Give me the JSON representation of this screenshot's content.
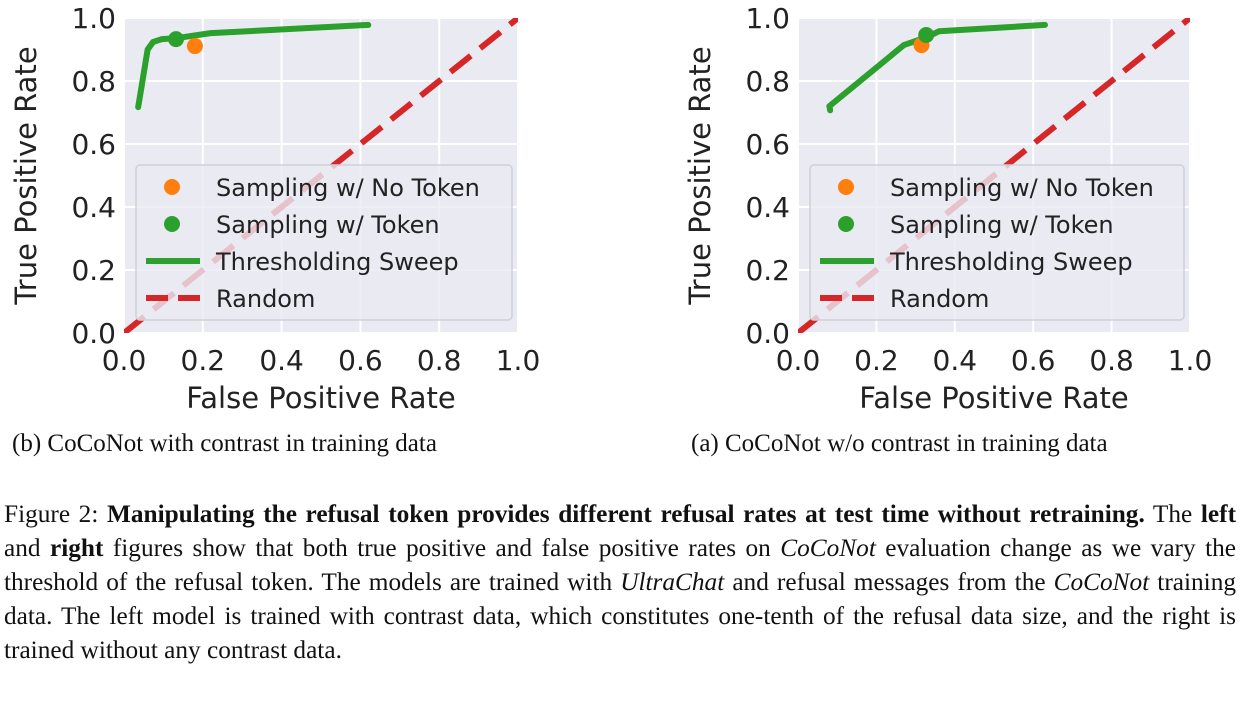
{
  "chart_data": [
    {
      "type": "line",
      "subcaption": "(b) CoCoNot with contrast in training data",
      "xlabel": "False Positive Rate",
      "ylabel": "True Positive Rate",
      "xlim": [
        0,
        1
      ],
      "ylim": [
        0,
        1
      ],
      "xticks": [
        "0.0",
        "0.2",
        "0.4",
        "0.6",
        "0.8",
        "1.0"
      ],
      "yticks": [
        "0.0",
        "0.2",
        "0.4",
        "0.6",
        "0.8",
        "1.0"
      ],
      "grid": true,
      "legend_placement": "lower-right",
      "series": [
        {
          "name": "Sampling w/ No Token",
          "kind": "point",
          "color": "#ff7f0e",
          "points": [
            [
              0.18,
              0.911
            ]
          ]
        },
        {
          "name": "Sampling w/ Token",
          "kind": "point",
          "color": "#2ca02c",
          "points": [
            [
              0.132,
              0.933
            ]
          ]
        },
        {
          "name": "Thresholding Sweep",
          "kind": "line",
          "color": "#2ca02c",
          "points": [
            [
              0.036,
              0.717
            ],
            [
              0.06,
              0.9
            ],
            [
              0.074,
              0.924
            ],
            [
              0.096,
              0.933
            ],
            [
              0.132,
              0.936
            ],
            [
              0.22,
              0.952
            ],
            [
              0.62,
              0.978
            ]
          ]
        },
        {
          "name": "Random",
          "kind": "dashed",
          "color": "#d62728",
          "points": [
            [
              0,
              0
            ],
            [
              1,
              1
            ]
          ]
        }
      ]
    },
    {
      "type": "line",
      "subcaption": "(a) CoCoNot w/o contrast in training data",
      "xlabel": "False Positive Rate",
      "ylabel": "True Positive Rate",
      "xlim": [
        0,
        1
      ],
      "ylim": [
        0,
        1
      ],
      "xticks": [
        "0.0",
        "0.2",
        "0.4",
        "0.6",
        "0.8",
        "1.0"
      ],
      "yticks": [
        "0.0",
        "0.2",
        "0.4",
        "0.6",
        "0.8",
        "1.0"
      ],
      "grid": true,
      "legend_placement": "lower-right",
      "series": [
        {
          "name": "Sampling w/ No Token",
          "kind": "point",
          "color": "#ff7f0e",
          "points": [
            [
              0.315,
              0.914
            ]
          ]
        },
        {
          "name": "Sampling w/ Token",
          "kind": "point",
          "color": "#2ca02c",
          "points": [
            [
              0.327,
              0.946
            ]
          ]
        },
        {
          "name": "Thresholding Sweep",
          "kind": "line",
          "color": "#2ca02c",
          "points": [
            [
              0.082,
              0.707
            ],
            [
              0.08,
              0.72
            ],
            [
              0.27,
              0.914
            ],
            [
              0.33,
              0.94
            ],
            [
              0.36,
              0.958
            ],
            [
              0.63,
              0.978
            ]
          ]
        },
        {
          "name": "Random",
          "kind": "dashed",
          "color": "#d62728",
          "points": [
            [
              0,
              0
            ],
            [
              1,
              1
            ]
          ]
        }
      ]
    }
  ],
  "caption": {
    "label": "Figure 2: ",
    "bold": "Manipulating the refusal token provides different refusal rates at test time without retraining.",
    "t1": " The ",
    "left": "left",
    "t2": " and ",
    "right": "right",
    "t3": " figures show that both true positive and false positive rates on ",
    "i1": "CoCoNot",
    "t4": " evaluation change as we vary the threshold of the refusal token. The models are trained with ",
    "i2": "UltraChat",
    "t5": " and refusal messages from the ",
    "i3": "CoCoNot",
    "t6": " training data. The left model is trained with contrast data, which constitutes one-tenth of the refusal data size, and the right is trained without any contrast data."
  }
}
